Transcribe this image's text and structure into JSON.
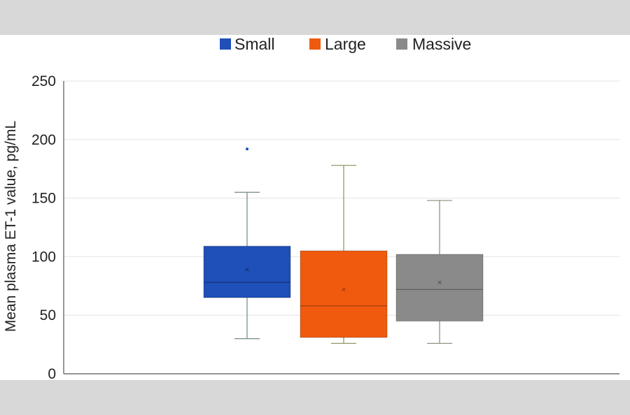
{
  "chart_data": {
    "type": "box",
    "title": "",
    "xlabel": "",
    "ylabel": "Mean plasma ET-1 value, pg/mL",
    "ylim": [
      0,
      250
    ],
    "yticks": [
      0,
      50,
      100,
      150,
      200,
      250
    ],
    "grid": true,
    "legend_position": "top",
    "series": [
      {
        "name": "Small",
        "color": "#1f4fb8",
        "min": 30,
        "q1": 65,
        "median": 78,
        "q3": 109,
        "max": 155,
        "mean": 89,
        "outliers": [
          192
        ]
      },
      {
        "name": "Large",
        "color": "#f05a0f",
        "min": 26,
        "q1": 31,
        "median": 58,
        "q3": 105,
        "max": 178,
        "mean": 72,
        "outliers": []
      },
      {
        "name": "Massive",
        "color": "#8a8a8a",
        "min": 26,
        "q1": 45,
        "median": 72,
        "q3": 102,
        "max": 148,
        "mean": 78,
        "outliers": []
      }
    ]
  }
}
